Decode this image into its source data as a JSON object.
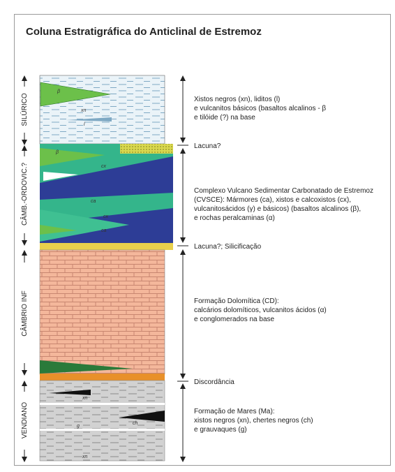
{
  "title": "Coluna Estratigráfica do Anticlinal de Estremoz",
  "units": [
    {
      "label": "SILÚRICO",
      "lines": [
        "Xistos negros (xn), liditos (l)",
        "e vulcanitos básicos (basaltos alcalinos - β",
        "e tilóide (?) na base"
      ]
    },
    {
      "label": "CÂMB.-ORDOVIC.?",
      "lines": [
        "Complexo Vulcano Sedimentar Carbonatado de Estremoz",
        "(CVSCE): Mármores (ca), xistos e calcoxistos (cx),",
        "vulcanitosácidos (γ) e básicos) (basaltos alcalinos (β),",
        "e rochas peralcaminas (α)"
      ]
    },
    {
      "label": "CÂMBRIO INF",
      "lines": [
        "Formação Dolomítica (CD):",
        "calcários dolomíticos, vulcanitos ácidos (α)",
        "e conglomerados na base"
      ]
    },
    {
      "label": "VENDIANO",
      "lines": [
        "Formação de Mares (Ma):",
        "xistos negros (xn), chertes negros (ch)",
        "e grauvaques (g)"
      ]
    }
  ],
  "boundaries": [
    "Lacuna?",
    "Lacuna?; Silicificação",
    "Discordância"
  ],
  "column_labels": [
    "β",
    "xn",
    "l",
    "β",
    "cx",
    "ca",
    "cx",
    "ca",
    "xn",
    "ch",
    "g",
    "xn"
  ]
}
